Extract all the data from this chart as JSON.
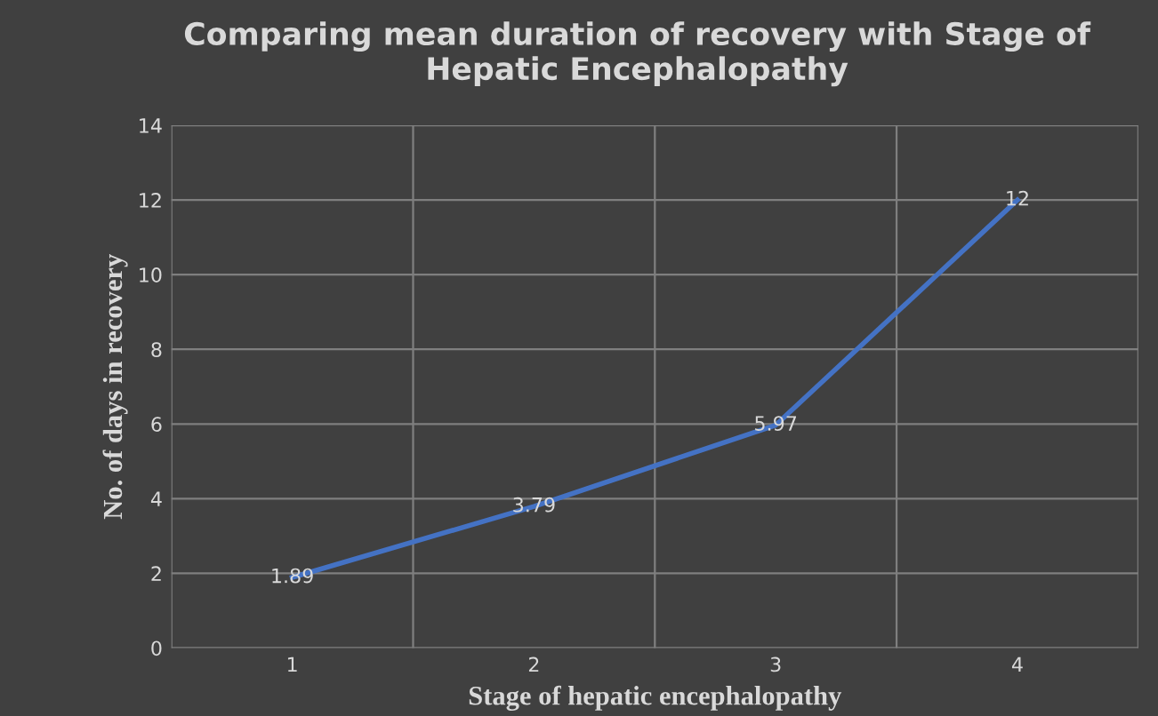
{
  "chart_data": {
    "type": "line",
    "title": "Comparing mean duration of recovery with Stage of Hepatic Encephalopathy",
    "xlabel": "Stage of hepatic encephalopathy",
    "ylabel": "No. of days in recovery",
    "categories": [
      "1",
      "2",
      "3",
      "4"
    ],
    "series": [
      {
        "color": "#4472c4",
        "values": [
          1.89,
          3.79,
          5.97,
          12
        ]
      }
    ],
    "ylim": [
      0,
      14
    ],
    "yticks": [
      0,
      2,
      4,
      6,
      8,
      10,
      12,
      14
    ],
    "grid": true,
    "data_labels": true,
    "line_style": "solid"
  }
}
